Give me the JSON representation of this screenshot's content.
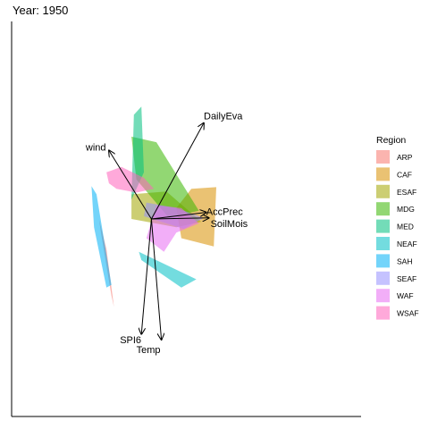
{
  "chart_data": {
    "type": "biplot",
    "title": "Year: 1950",
    "xlabel": "",
    "ylabel": "",
    "grid": false,
    "legend": {
      "title": "Region",
      "placement": "right",
      "entries": [
        {
          "name": "ARP",
          "color": "#F8766D"
        },
        {
          "name": "CAF",
          "color": "#D89000"
        },
        {
          "name": "ESAF",
          "color": "#A3A500"
        },
        {
          "name": "MDG",
          "color": "#39B600"
        },
        {
          "name": "MED",
          "color": "#00BF7D"
        },
        {
          "name": "NEAF",
          "color": "#00BFC4"
        },
        {
          "name": "SAH",
          "color": "#00B0F6"
        },
        {
          "name": "SEAF",
          "color": "#9590FF"
        },
        {
          "name": "WAF",
          "color": "#E76BF3"
        },
        {
          "name": "WSAF",
          "color": "#FF62BC"
        }
      ]
    },
    "origin": [
      0,
      0
    ],
    "xlim": [
      -2.8,
      4.2
    ],
    "ylim": [
      -3.6,
      3.6
    ],
    "vectors": [
      {
        "name": "DailyEva",
        "x": 1.05,
        "y": 1.75
      },
      {
        "name": "wind",
        "x": -0.85,
        "y": 1.25
      },
      {
        "name": "AccPrec",
        "x": 1.1,
        "y": 0.12
      },
      {
        "name": "SoilMois",
        "x": 1.15,
        "y": 0.02
      },
      {
        "name": "SPI6",
        "x": -0.2,
        "y": -2.1
      },
      {
        "name": "Temp",
        "x": 0.2,
        "y": -2.2
      }
    ],
    "hulls": [
      {
        "region": "ARP",
        "points": [
          [
            -1.05,
            0.0
          ],
          [
            -0.9,
            -0.55
          ],
          [
            -0.75,
            -1.6
          ],
          [
            -0.8,
            -1.4
          ],
          [
            -1.0,
            -0.3
          ]
        ]
      },
      {
        "region": "CAF",
        "points": [
          [
            0.5,
            0.2
          ],
          [
            0.8,
            0.55
          ],
          [
            1.3,
            0.58
          ],
          [
            1.25,
            -0.5
          ],
          [
            0.6,
            -0.35
          ]
        ]
      },
      {
        "region": "ESAF",
        "points": [
          [
            -0.4,
            0.45
          ],
          [
            0.3,
            0.5
          ],
          [
            1.0,
            -0.05
          ],
          [
            0.5,
            -0.15
          ],
          [
            -0.4,
            0.0
          ]
        ]
      },
      {
        "region": "MDG",
        "points": [
          [
            -0.4,
            1.5
          ],
          [
            0.1,
            1.4
          ],
          [
            0.95,
            0.15
          ],
          [
            0.35,
            0.02
          ],
          [
            -0.3,
            0.72
          ]
        ]
      },
      {
        "region": "MED",
        "points": [
          [
            -0.35,
            1.9
          ],
          [
            -0.2,
            2.05
          ],
          [
            -0.15,
            0.85
          ],
          [
            -0.4,
            0.35
          ]
        ]
      },
      {
        "region": "NEAF",
        "points": [
          [
            -0.25,
            -0.6
          ],
          [
            0.9,
            -1.1
          ],
          [
            0.6,
            -1.25
          ],
          [
            -0.2,
            -0.75
          ]
        ]
      },
      {
        "region": "SAH",
        "points": [
          [
            -1.2,
            0.6
          ],
          [
            -1.1,
            0.45
          ],
          [
            -0.8,
            -1.2
          ],
          [
            -0.9,
            -1.25
          ],
          [
            -1.15,
            -0.15
          ]
        ]
      },
      {
        "region": "SEAF",
        "points": [
          [
            -0.1,
            0.3
          ],
          [
            0.5,
            0.2
          ],
          [
            1.05,
            0.02
          ],
          [
            0.65,
            -0.18
          ],
          [
            -0.15,
            0.05
          ]
        ]
      },
      {
        "region": "WAF",
        "points": [
          [
            0.1,
            0.25
          ],
          [
            0.6,
            0.2
          ],
          [
            0.95,
            -0.08
          ],
          [
            0.5,
            -0.25
          ],
          [
            0.25,
            -0.6
          ],
          [
            -0.1,
            -0.35
          ]
        ]
      },
      {
        "region": "WSAF",
        "points": [
          [
            -0.9,
            0.85
          ],
          [
            -0.6,
            0.95
          ],
          [
            -0.15,
            0.75
          ],
          [
            0.05,
            0.55
          ],
          [
            -0.3,
            0.48
          ],
          [
            -0.7,
            0.55
          ],
          [
            -0.85,
            0.65
          ]
        ]
      }
    ]
  }
}
